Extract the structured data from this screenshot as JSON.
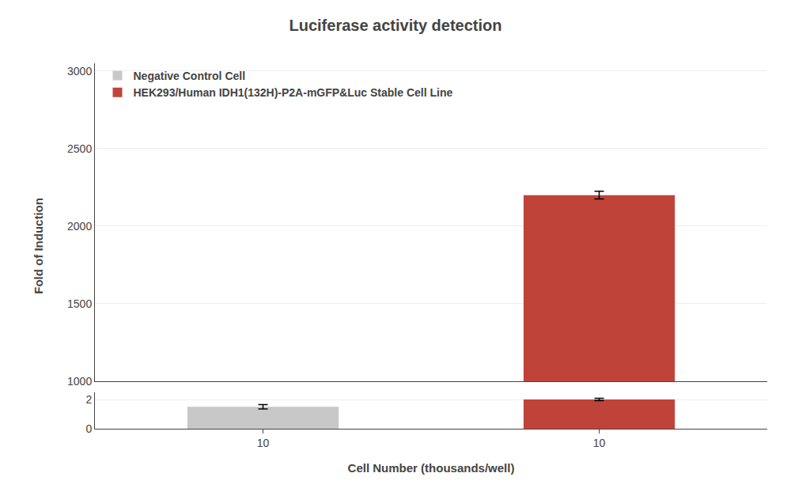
{
  "chart_data": [
    {
      "type": "bar",
      "title": "Luciferase activity detection",
      "ylabel": "Fold of Induction",
      "categories": [
        "10",
        "10"
      ],
      "series": [
        {
          "name": "Negative Control Cell",
          "color": "#c8c8c8",
          "values": [
            null,
            null
          ]
        },
        {
          "name": "HEK293/Human IDH1(132H)-P2A-mGFP&Luc Stable Cell Line",
          "color": "#c0433a",
          "values": [
            null,
            2200
          ],
          "errors": [
            null,
            25
          ]
        }
      ],
      "ylim": [
        1000,
        3050
      ],
      "yticks": [
        1000,
        1500,
        2000,
        2500,
        3000
      ],
      "legend": "upper left",
      "tick_labels": "y"
    },
    {
      "type": "bar",
      "xlabel": "Cell Number (thousands/well)",
      "categories": [
        "10",
        "10"
      ],
      "series": [
        {
          "name": "Negative Control Cell",
          "color": "#c8c8c8",
          "values": [
            1.5,
            null
          ],
          "errors": [
            0.15,
            null
          ]
        },
        {
          "name": "HEK293/Human IDH1(132H)-P2A-mGFP&Luc Stable Cell Line",
          "color": "#c0433a",
          "values": [
            null,
            2.0
          ],
          "errors": [
            null,
            0.08
          ]
        }
      ],
      "ylim": [
        0,
        2.5
      ],
      "yticks": [
        0,
        2
      ]
    }
  ]
}
